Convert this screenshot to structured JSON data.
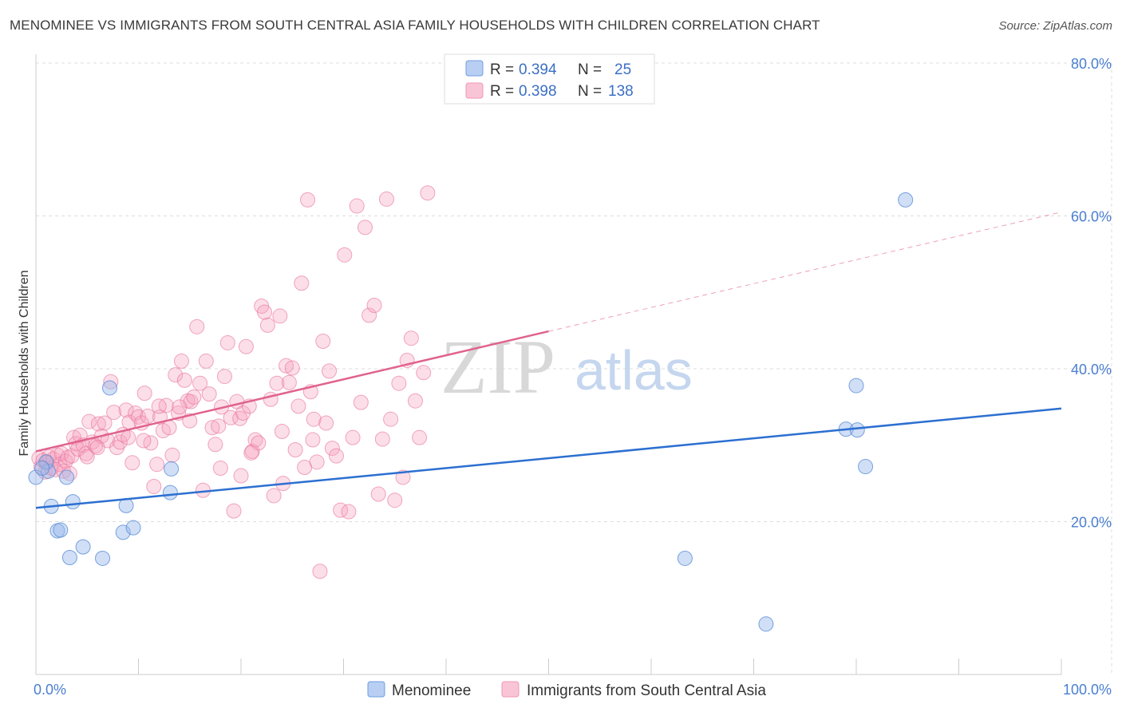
{
  "title": "MENOMINEE VS IMMIGRANTS FROM SOUTH CENTRAL ASIA FAMILY HOUSEHOLDS WITH CHILDREN CORRELATION CHART",
  "source": "Source: ZipAtlas.com",
  "watermark": {
    "zip": "ZIP",
    "atlas": "atlas"
  },
  "colors": {
    "blue": "#6f9de0",
    "blue_line": "#2c6fd1",
    "pink": "#f096b4",
    "pink_line": "#e0628e",
    "grid": "#dddddd",
    "tick_text": "#4a7fd0"
  },
  "legend": {
    "row1": {
      "r_label": "R =",
      "r_value": "0.394",
      "n_label": "N =",
      "n_value": "25"
    },
    "row2": {
      "r_label": "R =",
      "r_value": "0.398",
      "n_label": "N =",
      "n_value": "138"
    }
  },
  "bottom_legend": {
    "series1": "Menominee",
    "series2": "Immigrants from South Central Asia"
  },
  "chart_data": {
    "type": "scatter",
    "title": "MENOMINEE VS IMMIGRANTS FROM SOUTH CENTRAL ASIA FAMILY HOUSEHOLDS WITH CHILDREN CORRELATION CHART",
    "xlabel": "",
    "ylabel": "Family Households with Children",
    "xlim": [
      0,
      100
    ],
    "ylim": [
      0,
      80
    ],
    "x_tick_labels": [
      "0.0%",
      "100.0%"
    ],
    "y_ticks": [
      20,
      40,
      60,
      80
    ],
    "y_tick_labels": [
      "20.0%",
      "40.0%",
      "60.0%",
      "80.0%"
    ],
    "grid": true,
    "series": [
      {
        "name": "Menominee",
        "color": "#6f9de0",
        "r": 0.394,
        "n": 25,
        "trend": {
          "x0": 0,
          "y0": 21.8,
          "x1": 100,
          "y1": 34.8
        },
        "points": [
          [
            0.0,
            25.8
          ],
          [
            1.2,
            26.6
          ],
          [
            3.0,
            25.8
          ],
          [
            1.5,
            22.0
          ],
          [
            3.6,
            22.6
          ],
          [
            2.1,
            18.8
          ],
          [
            2.4,
            18.9
          ],
          [
            4.6,
            16.7
          ],
          [
            3.3,
            15.3
          ],
          [
            6.5,
            15.2
          ],
          [
            7.2,
            37.5
          ],
          [
            8.5,
            18.6
          ],
          [
            8.8,
            22.1
          ],
          [
            9.5,
            19.2
          ],
          [
            13.1,
            23.8
          ],
          [
            13.2,
            26.9
          ],
          [
            84.8,
            62.1
          ],
          [
            79.0,
            32.1
          ],
          [
            80.1,
            32.0
          ],
          [
            80.9,
            27.2
          ],
          [
            80.0,
            37.8
          ],
          [
            63.3,
            15.2
          ],
          [
            71.2,
            6.6
          ],
          [
            1.0,
            27.8
          ],
          [
            0.6,
            27.0
          ]
        ]
      },
      {
        "name": "Immigrants from South Central Asia",
        "color": "#f096b4",
        "r": 0.398,
        "n": 138,
        "trend": {
          "x0": 0,
          "y0": 29.2,
          "x1": 50,
          "y1": 44.9
        },
        "trend_dashed": {
          "x0": 50,
          "y0": 44.9,
          "x1": 100,
          "y1": 60.5
        },
        "points": [
          [
            0.3,
            28.3
          ],
          [
            0.5,
            27.2
          ],
          [
            0.7,
            28.0
          ],
          [
            0.9,
            26.5
          ],
          [
            1.1,
            27.8
          ],
          [
            1.3,
            28.5
          ],
          [
            1.5,
            27.0
          ],
          [
            1.7,
            28.2
          ],
          [
            1.9,
            26.8
          ],
          [
            2.1,
            28.7
          ],
          [
            2.3,
            27.5
          ],
          [
            2.5,
            28.9
          ],
          [
            2.7,
            26.6
          ],
          [
            2.9,
            27.9
          ],
          [
            3.1,
            28.4
          ],
          [
            3.3,
            26.3
          ],
          [
            3.5,
            28.6
          ],
          [
            3.7,
            31.0
          ],
          [
            3.9,
            30.2
          ],
          [
            4.1,
            29.5
          ],
          [
            4.3,
            31.3
          ],
          [
            4.6,
            30.0
          ],
          [
            4.9,
            28.9
          ],
          [
            5.2,
            33.1
          ],
          [
            5.5,
            30.4
          ],
          [
            5.8,
            29.9
          ],
          [
            6.1,
            32.8
          ],
          [
            6.4,
            31.2
          ],
          [
            6.7,
            32.9
          ],
          [
            7.0,
            30.6
          ],
          [
            7.3,
            38.3
          ],
          [
            7.6,
            34.3
          ],
          [
            7.9,
            29.7
          ],
          [
            8.2,
            30.4
          ],
          [
            8.5,
            31.4
          ],
          [
            8.8,
            34.6
          ],
          [
            9.1,
            33.0
          ],
          [
            9.4,
            27.7
          ],
          [
            9.7,
            34.2
          ],
          [
            10.0,
            33.7
          ],
          [
            10.3,
            32.9
          ],
          [
            10.6,
            36.8
          ],
          [
            10.9,
            33.8
          ],
          [
            11.2,
            30.3
          ],
          [
            11.5,
            24.6
          ],
          [
            11.8,
            27.5
          ],
          [
            12.1,
            33.7
          ],
          [
            12.4,
            31.9
          ],
          [
            12.7,
            35.2
          ],
          [
            13.0,
            32.3
          ],
          [
            13.3,
            28.7
          ],
          [
            13.6,
            39.2
          ],
          [
            13.9,
            34.2
          ],
          [
            14.2,
            41.0
          ],
          [
            14.5,
            38.5
          ],
          [
            14.8,
            35.8
          ],
          [
            15.1,
            35.7
          ],
          [
            15.4,
            36.3
          ],
          [
            15.7,
            45.5
          ],
          [
            16.0,
            38.1
          ],
          [
            16.3,
            24.1
          ],
          [
            16.6,
            41.0
          ],
          [
            16.9,
            36.7
          ],
          [
            17.2,
            32.3
          ],
          [
            17.5,
            30.1
          ],
          [
            17.8,
            32.5
          ],
          [
            18.1,
            35.0
          ],
          [
            18.4,
            39.0
          ],
          [
            18.7,
            43.4
          ],
          [
            19.0,
            33.6
          ],
          [
            19.3,
            21.4
          ],
          [
            19.6,
            35.7
          ],
          [
            19.9,
            33.5
          ],
          [
            20.2,
            34.2
          ],
          [
            20.5,
            42.9
          ],
          [
            20.8,
            35.1
          ],
          [
            21.1,
            29.2
          ],
          [
            21.4,
            30.7
          ],
          [
            21.7,
            30.3
          ],
          [
            22.0,
            48.2
          ],
          [
            22.3,
            47.4
          ],
          [
            22.6,
            45.7
          ],
          [
            22.9,
            36.0
          ],
          [
            23.2,
            23.4
          ],
          [
            23.5,
            38.1
          ],
          [
            23.8,
            46.9
          ],
          [
            24.1,
            25.0
          ],
          [
            24.4,
            40.4
          ],
          [
            24.7,
            38.2
          ],
          [
            25.0,
            40.1
          ],
          [
            25.3,
            29.4
          ],
          [
            25.6,
            35.1
          ],
          [
            25.9,
            51.2
          ],
          [
            26.2,
            27.1
          ],
          [
            26.5,
            62.1
          ],
          [
            26.8,
            37.0
          ],
          [
            27.1,
            33.4
          ],
          [
            27.4,
            27.8
          ],
          [
            27.7,
            13.5
          ],
          [
            28.0,
            43.6
          ],
          [
            28.3,
            32.9
          ],
          [
            28.6,
            39.7
          ],
          [
            28.9,
            29.6
          ],
          [
            29.3,
            28.6
          ],
          [
            29.7,
            21.5
          ],
          [
            30.1,
            54.9
          ],
          [
            30.5,
            21.3
          ],
          [
            30.9,
            31.0
          ],
          [
            31.3,
            61.3
          ],
          [
            31.7,
            35.6
          ],
          [
            32.1,
            58.5
          ],
          [
            32.5,
            47.0
          ],
          [
            33.0,
            48.3
          ],
          [
            33.4,
            23.6
          ],
          [
            33.8,
            30.8
          ],
          [
            34.2,
            62.2
          ],
          [
            34.6,
            33.4
          ],
          [
            35.0,
            22.8
          ],
          [
            35.4,
            38.1
          ],
          [
            35.8,
            25.8
          ],
          [
            36.2,
            41.1
          ],
          [
            36.6,
            44.0
          ],
          [
            37.0,
            35.8
          ],
          [
            37.4,
            31.0
          ],
          [
            37.8,
            39.5
          ],
          [
            38.2,
            63.0
          ],
          [
            5.0,
            28.5
          ],
          [
            6.0,
            29.7
          ],
          [
            9.0,
            31.0
          ],
          [
            10.5,
            30.6
          ],
          [
            12.0,
            35.1
          ],
          [
            14.0,
            35.0
          ],
          [
            15.0,
            33.2
          ],
          [
            18.0,
            27.0
          ],
          [
            21.0,
            29.0
          ],
          [
            24.0,
            31.8
          ],
          [
            27.0,
            30.7
          ],
          [
            20.0,
            26.0
          ]
        ]
      }
    ]
  }
}
